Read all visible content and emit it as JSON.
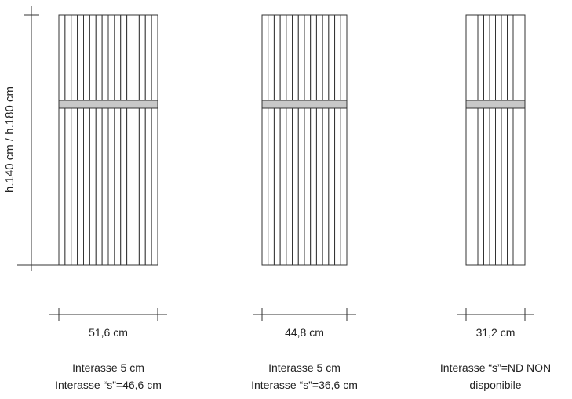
{
  "height_label": "h.140 cm / h.180 cm",
  "bar_color": "#c8c8c8",
  "line_color": "#333333",
  "radiators": [
    {
      "id": "radiator-1",
      "tube_count": 16,
      "width_label": "51,6 cm",
      "caption_line1": "Interasse 5 cm",
      "caption_line2": "Interasse “s”=46,6 cm"
    },
    {
      "id": "radiator-2",
      "tube_count": 14,
      "width_label": "44,8 cm",
      "caption_line1": "Interasse 5 cm",
      "caption_line2": "Interasse “s”=36,6 cm"
    },
    {
      "id": "radiator-3",
      "tube_count": 10,
      "width_label": "31,2 cm",
      "caption_line1": "Interasse “s”=ND NON",
      "caption_line2": "disponibile"
    }
  ]
}
